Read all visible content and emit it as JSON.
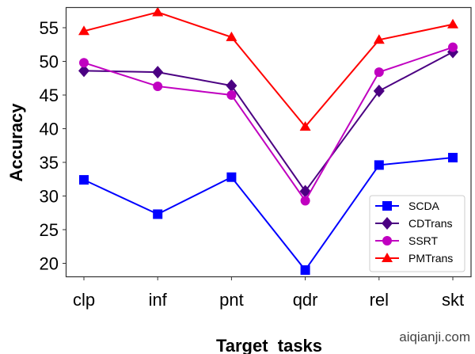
{
  "chart_data": {
    "type": "line",
    "xlabel": "Target  tasks",
    "ylabel": "Accuracy",
    "categories": [
      "clp",
      "inf",
      "pnt",
      "qdr",
      "rel",
      "skt"
    ],
    "ylim": [
      18,
      58
    ],
    "yticks": [
      20,
      25,
      30,
      35,
      40,
      45,
      50,
      55
    ],
    "grid": false,
    "legend_position": "bottom-right",
    "series": [
      {
        "name": "SCDA",
        "color": "#0000ff",
        "marker": "square",
        "values": [
          32.4,
          27.3,
          32.8,
          19.0,
          34.6,
          35.7
        ]
      },
      {
        "name": "CDTrans",
        "color": "#4b0082",
        "marker": "diamond",
        "values": [
          48.6,
          48.4,
          46.4,
          30.7,
          45.6,
          51.4
        ]
      },
      {
        "name": "SSRT",
        "color": "#c000c0",
        "marker": "circle",
        "values": [
          49.8,
          46.3,
          45.0,
          29.3,
          48.4,
          52.1
        ]
      },
      {
        "name": "PMTrans",
        "color": "#ff0000",
        "marker": "triangle",
        "values": [
          54.5,
          57.3,
          53.6,
          40.3,
          53.2,
          55.5
        ]
      }
    ]
  },
  "watermark": "aiqianji.com"
}
